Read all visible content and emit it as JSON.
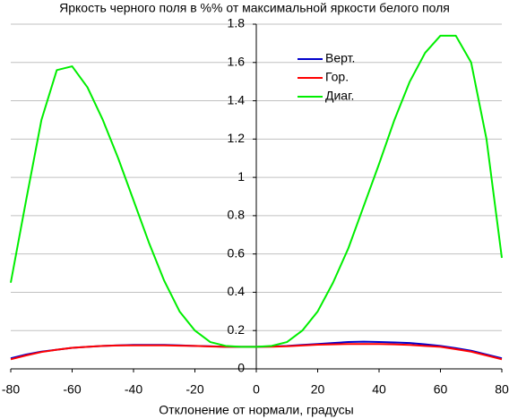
{
  "chart_data": {
    "type": "line",
    "title": "Яркость черного поля в %% от максимальной яркости белого поля",
    "x_label": "Отклонение от нормали, градусы",
    "x": [
      -80,
      -75,
      -70,
      -65,
      -60,
      -55,
      -50,
      -45,
      -40,
      -35,
      -30,
      -25,
      -20,
      -15,
      -10,
      -5,
      0,
      5,
      10,
      15,
      20,
      25,
      30,
      35,
      40,
      45,
      50,
      55,
      60,
      65,
      70,
      75,
      80
    ],
    "series": [
      {
        "name": "Верт.",
        "color": "#0000cc",
        "values": [
          0.055,
          0.075,
          0.09,
          0.1,
          0.11,
          0.115,
          0.12,
          0.123,
          0.125,
          0.125,
          0.125,
          0.123,
          0.12,
          0.118,
          0.115,
          0.115,
          0.115,
          0.117,
          0.12,
          0.125,
          0.13,
          0.135,
          0.14,
          0.142,
          0.14,
          0.138,
          0.135,
          0.128,
          0.12,
          0.108,
          0.095,
          0.075,
          0.055
        ]
      },
      {
        "name": "Гор.",
        "color": "#ff0000",
        "values": [
          0.05,
          0.07,
          0.088,
          0.1,
          0.11,
          0.115,
          0.12,
          0.122,
          0.123,
          0.123,
          0.123,
          0.121,
          0.12,
          0.117,
          0.115,
          0.115,
          0.115,
          0.116,
          0.118,
          0.122,
          0.126,
          0.128,
          0.13,
          0.13,
          0.13,
          0.128,
          0.125,
          0.12,
          0.115,
          0.103,
          0.09,
          0.07,
          0.05
        ]
      },
      {
        "name": "Диаг.",
        "color": "#00ee00",
        "values": [
          0.45,
          0.88,
          1.3,
          1.56,
          1.58,
          1.47,
          1.3,
          1.1,
          0.88,
          0.66,
          0.46,
          0.3,
          0.2,
          0.14,
          0.12,
          0.115,
          0.115,
          0.12,
          0.14,
          0.2,
          0.3,
          0.45,
          0.63,
          0.85,
          1.07,
          1.3,
          1.5,
          1.65,
          1.74,
          1.74,
          1.6,
          1.2,
          0.58
        ]
      }
    ],
    "xlim": [
      -80,
      80
    ],
    "xticks": [
      -80,
      -60,
      -40,
      -20,
      0,
      20,
      40,
      60,
      80
    ],
    "ylim": [
      0,
      1.8
    ],
    "yticks": [
      0,
      0.2,
      0.4,
      0.6,
      0.8,
      1,
      1.2,
      1.4,
      1.6,
      1.8
    ],
    "grid": true,
    "legend": "upper center"
  }
}
